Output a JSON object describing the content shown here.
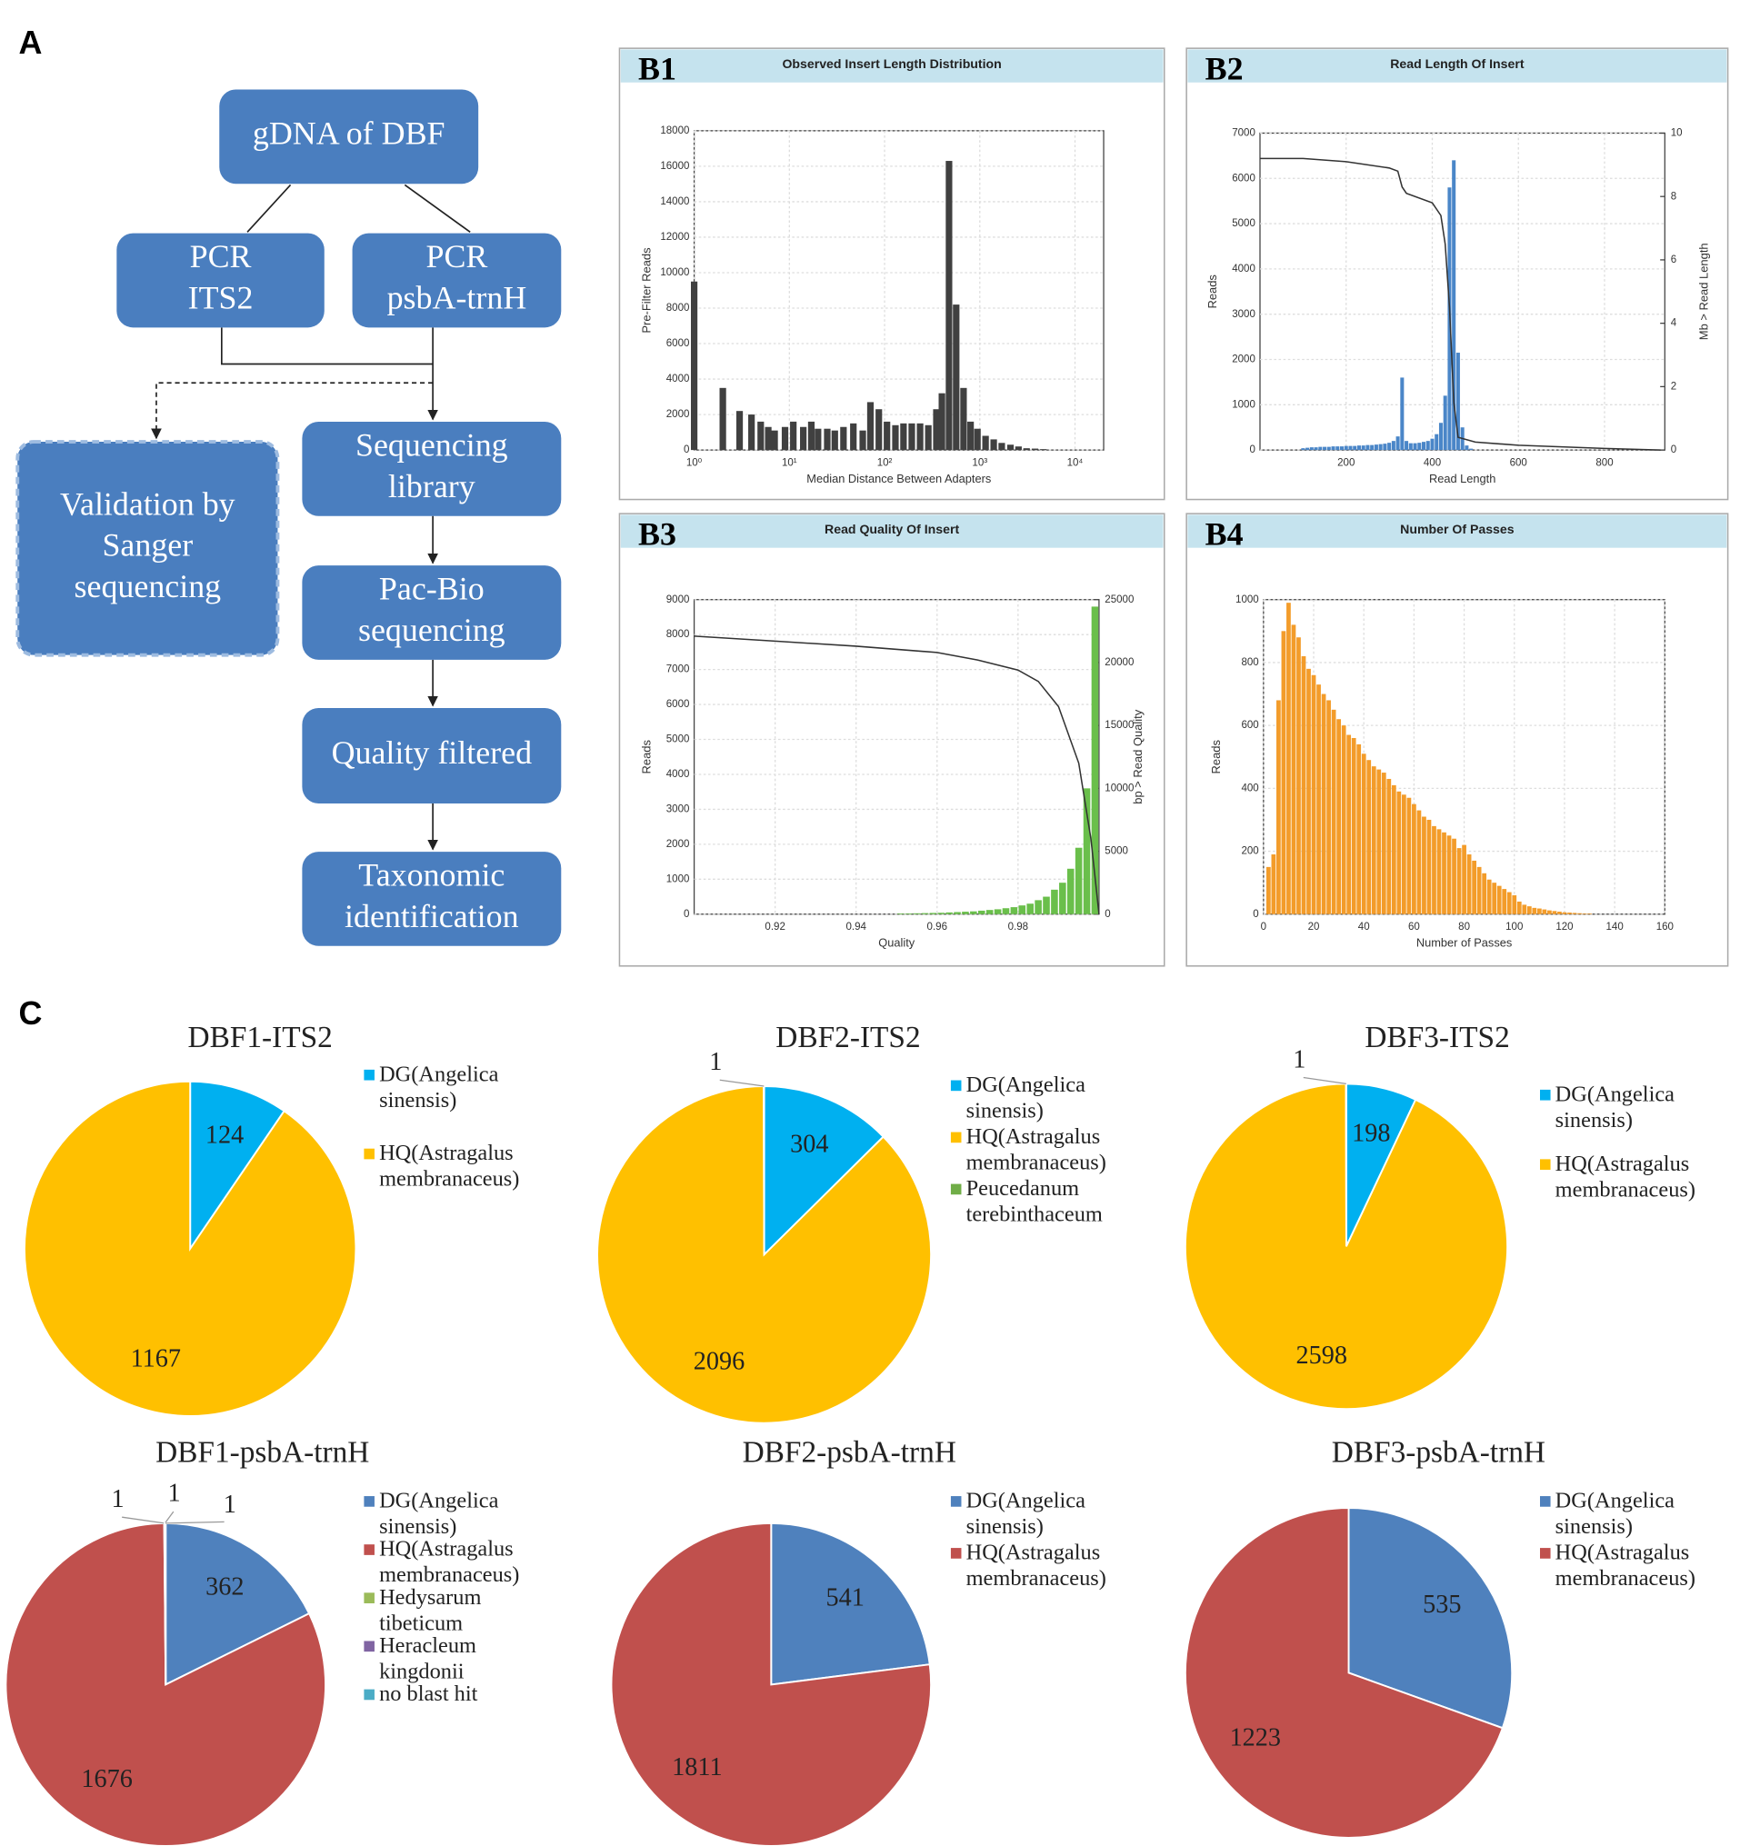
{
  "flowchart": {
    "label": "A",
    "nodes": [
      {
        "lines": [
          "gDNA of DBF"
        ]
      },
      {
        "lines": [
          "PCR",
          "ITS2"
        ]
      },
      {
        "lines": [
          "PCR",
          "psbA-trnH"
        ]
      },
      {
        "lines": [
          "Validation by",
          "Sanger",
          "sequencing"
        ]
      },
      {
        "lines": [
          "Sequencing",
          "library"
        ]
      },
      {
        "lines": [
          "Pac-Bio",
          "sequencing"
        ]
      },
      {
        "lines": [
          "Quality filtered"
        ]
      },
      {
        "lines": [
          "Taxonomic",
          "identification"
        ]
      }
    ]
  },
  "section_c": {
    "label": "C"
  },
  "chart_data": [
    {
      "type": "bar",
      "label": "B1",
      "title": "Observed Insert Length Distribution",
      "x_label": "Median Distance Between Adapters",
      "y_label": "Pre-Filter Reads",
      "log_x": true,
      "grid": true,
      "color": "#404040",
      "x": [
        1,
        2,
        3,
        4,
        5,
        6,
        7,
        9,
        11,
        14,
        17,
        20,
        25,
        30,
        37,
        47,
        59,
        71,
        87,
        106,
        130,
        158,
        193,
        236,
        288,
        350,
        400,
        475,
        565,
        675,
        800,
        945,
        1150,
        1400,
        1700,
        2100,
        2550,
        3100,
        3800,
        4650
      ],
      "values": [
        9500,
        3500,
        2200,
        2000,
        1600,
        1300,
        1100,
        1300,
        1600,
        1300,
        1600,
        1200,
        1200,
        1100,
        1300,
        1500,
        1100,
        2700,
        2300,
        1600,
        1400,
        1500,
        1500,
        1500,
        1400,
        2300,
        3200,
        16300,
        8200,
        3500,
        1600,
        1200,
        800,
        600,
        400,
        300,
        200,
        100,
        80,
        50
      ],
      "xlim": [
        1,
        20000
      ],
      "xticks": [
        {
          "value": 1,
          "label": "10⁰"
        },
        {
          "value": 10,
          "label": "10¹"
        },
        {
          "value": 100,
          "label": "10²"
        },
        {
          "value": 1000,
          "label": "10³"
        },
        {
          "value": 10000,
          "label": "10⁴"
        }
      ],
      "ylim": [
        0,
        18000
      ],
      "yticks": [
        0,
        2000,
        4000,
        6000,
        8000,
        10000,
        12000,
        14000,
        16000,
        18000
      ]
    },
    {
      "type": "combo",
      "label": "B2",
      "title": "Read Length Of Insert",
      "x_label": "Read Length",
      "y_label": "Reads",
      "y2_label": "Mb > Read Length",
      "grid": true,
      "series": [
        {
          "kind": "bar",
          "color": "#4a86c8",
          "x": [
            100,
            110,
            120,
            130,
            140,
            150,
            160,
            170,
            180,
            190,
            200,
            210,
            220,
            230,
            240,
            250,
            260,
            270,
            280,
            290,
            300,
            310,
            320,
            330,
            340,
            350,
            360,
            370,
            380,
            390,
            400,
            410,
            420,
            430,
            440,
            450,
            460,
            470,
            480,
            490
          ],
          "values": [
            40,
            50,
            60,
            60,
            70,
            70,
            70,
            80,
            80,
            80,
            90,
            90,
            90,
            100,
            100,
            110,
            110,
            120,
            130,
            140,
            160,
            200,
            300,
            1600,
            200,
            150,
            150,
            160,
            180,
            200,
            250,
            350,
            600,
            1200,
            5800,
            6400,
            2150,
            500,
            100,
            30
          ]
        },
        {
          "kind": "line",
          "color": "#333333",
          "axis": "y2",
          "x": [
            0,
            100,
            200,
            300,
            320,
            330,
            340,
            400,
            420,
            430,
            440,
            450,
            460,
            500,
            600,
            800,
            930
          ],
          "values": [
            9.2,
            9.2,
            9.1,
            8.9,
            8.8,
            8.3,
            8.1,
            7.8,
            7.4,
            6.5,
            4.5,
            1.5,
            0.4,
            0.25,
            0.15,
            0.05,
            0
          ]
        }
      ],
      "xlim": [
        0,
        940
      ],
      "xticks": [
        200,
        400,
        600,
        800
      ],
      "ylim": [
        0,
        7000
      ],
      "yticks": [
        0,
        1000,
        2000,
        3000,
        4000,
        5000,
        6000,
        7000
      ],
      "y2lim": [
        0,
        10
      ],
      "y2ticks": [
        0,
        2,
        4,
        6,
        8,
        10
      ]
    },
    {
      "type": "combo",
      "label": "B3",
      "title": "Read Quality Of Insert",
      "x_label": "Quality",
      "y_label": "Reads",
      "y2_label": "bp > Read Quality",
      "grid": true,
      "series": [
        {
          "kind": "bar",
          "color": "#6abf4b",
          "x": [
            0.951,
            0.953,
            0.955,
            0.957,
            0.959,
            0.961,
            0.963,
            0.965,
            0.967,
            0.969,
            0.971,
            0.973,
            0.975,
            0.977,
            0.979,
            0.981,
            0.983,
            0.985,
            0.987,
            0.989,
            0.991,
            0.993,
            0.995,
            0.997,
            0.999
          ],
          "values": [
            20,
            20,
            25,
            30,
            35,
            40,
            50,
            60,
            70,
            80,
            100,
            120,
            140,
            170,
            200,
            250,
            300,
            400,
            500,
            700,
            900,
            1300,
            1900,
            3600,
            8800
          ]
        },
        {
          "kind": "line",
          "color": "#333333",
          "axis": "y2",
          "x": [
            0.9,
            0.92,
            0.94,
            0.96,
            0.97,
            0.98,
            0.985,
            0.99,
            0.995,
            0.998,
            1.0
          ],
          "values": [
            22100,
            21700,
            21300,
            20800,
            20200,
            19400,
            18500,
            16500,
            12000,
            6000,
            0
          ]
        }
      ],
      "xlim": [
        0.9,
        1.0
      ],
      "xticks": [
        0.92,
        0.94,
        0.96,
        0.98
      ],
      "ylim": [
        0,
        9000
      ],
      "yticks": [
        0,
        1000,
        2000,
        3000,
        4000,
        5000,
        6000,
        7000,
        8000,
        9000
      ],
      "y2lim": [
        0,
        25000
      ],
      "y2ticks": [
        0,
        5000,
        10000,
        15000,
        20000,
        25000
      ]
    },
    {
      "type": "histogram",
      "label": "B4",
      "title": "Number Of Passes",
      "x_label": "Number of Passes",
      "y_label": "Reads",
      "grid": true,
      "color": "#f39c2a",
      "bins": [
        1,
        3,
        5,
        7,
        9,
        11,
        13,
        15,
        17,
        19,
        21,
        23,
        25,
        27,
        29,
        31,
        33,
        35,
        37,
        39,
        41,
        43,
        45,
        47,
        49,
        51,
        53,
        55,
        57,
        59,
        61,
        63,
        65,
        67,
        69,
        71,
        73,
        75,
        77,
        79,
        81,
        83,
        85,
        87,
        89,
        91,
        93,
        95,
        97,
        99,
        101,
        103,
        105,
        107,
        109,
        111,
        113,
        115,
        117,
        119,
        121,
        123,
        125,
        127,
        129,
        131
      ],
      "values": [
        150,
        190,
        680,
        900,
        990,
        920,
        880,
        820,
        780,
        760,
        730,
        700,
        680,
        650,
        620,
        600,
        570,
        560,
        540,
        510,
        490,
        470,
        460,
        450,
        430,
        410,
        390,
        380,
        370,
        350,
        330,
        310,
        300,
        280,
        270,
        260,
        250,
        240,
        210,
        220,
        190,
        170,
        150,
        130,
        110,
        100,
        90,
        80,
        70,
        60,
        40,
        30,
        25,
        20,
        18,
        15,
        12,
        10,
        8,
        6,
        5,
        4,
        3,
        2,
        2
      ],
      "xlim": [
        0,
        160
      ],
      "xticks": [
        0,
        20,
        40,
        60,
        80,
        100,
        120,
        140,
        160
      ],
      "ylim": [
        0,
        1000
      ],
      "yticks": [
        0,
        200,
        400,
        600,
        800,
        1000
      ]
    },
    {
      "type": "pie",
      "title": "DBF1-ITS2",
      "categories": [
        "DG(Angelica sinensis)",
        "HQ(Astragalus membranaceus)"
      ],
      "values": [
        124,
        1167
      ],
      "colors": [
        "#00b0f0",
        "#ffc000"
      ]
    },
    {
      "type": "pie",
      "title": "DBF2-ITS2",
      "categories": [
        "DG(Angelica sinensis)",
        "HQ(Astragalus membranaceus)",
        "Peucedanum terebinthaceum"
      ],
      "values": [
        304,
        2096,
        1
      ],
      "colors": [
        "#00b0f0",
        "#ffc000",
        "#70ad47"
      ]
    },
    {
      "type": "pie",
      "title": "DBF3-ITS2",
      "categories": [
        "DG(Angelica sinensis)",
        "HQ(Astragalus membranaceus)",
        null
      ],
      "values": [
        198,
        2598,
        1
      ],
      "colors": [
        "#00b0f0",
        "#ffc000",
        "#a5a5a5"
      ]
    },
    {
      "type": "pie",
      "title": "DBF1-psbA-trnH",
      "categories": [
        "DG(Angelica sinensis)",
        "HQ(Astragalus membranaceus)",
        "Hedysarum tibeticum",
        "Heracleum kingdonii",
        "no blast hit"
      ],
      "values": [
        362,
        1676,
        1,
        1,
        1
      ],
      "colors": [
        "#4f81bd",
        "#c0504d",
        "#9bbb59",
        "#8064a2",
        "#4bacc6"
      ]
    },
    {
      "type": "pie",
      "title": "DBF2-psbA-trnH",
      "categories": [
        "DG(Angelica sinensis)",
        "HQ(Astragalus membranaceus)"
      ],
      "values": [
        541,
        1811
      ],
      "colors": [
        "#4f81bd",
        "#c0504d"
      ]
    },
    {
      "type": "pie",
      "title": "DBF3-psbA-trnH",
      "categories": [
        "DG(Angelica sinensis)",
        "HQ(Astragalus membranaceus)"
      ],
      "values": [
        535,
        1223
      ],
      "colors": [
        "#4f81bd",
        "#c0504d"
      ]
    }
  ]
}
